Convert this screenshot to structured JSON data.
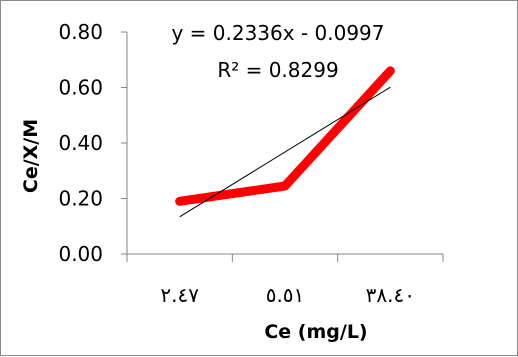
{
  "chart_data": {
    "type": "line",
    "categories": [
      "٢.٤٧",
      "٥.٥١",
      "٣٨.٤٠"
    ],
    "series": [
      {
        "values": [
          0.19,
          0.245,
          0.66
        ],
        "color": "#ff0000"
      }
    ],
    "trendline": {
      "equation": "y = 0.2336x - 0.0997",
      "r2_label": "R² = 0.8299",
      "slope": 0.2336,
      "intercept": -0.0997,
      "color": "#000000"
    },
    "xlabel": "Ce (mg/L)",
    "ylabel": "Ce/X/M",
    "ylim": [
      0,
      0.8
    ],
    "yticks": [
      "0.00",
      "0.20",
      "0.40",
      "0.60",
      "0.80"
    ],
    "grid": false,
    "legend": "none"
  }
}
